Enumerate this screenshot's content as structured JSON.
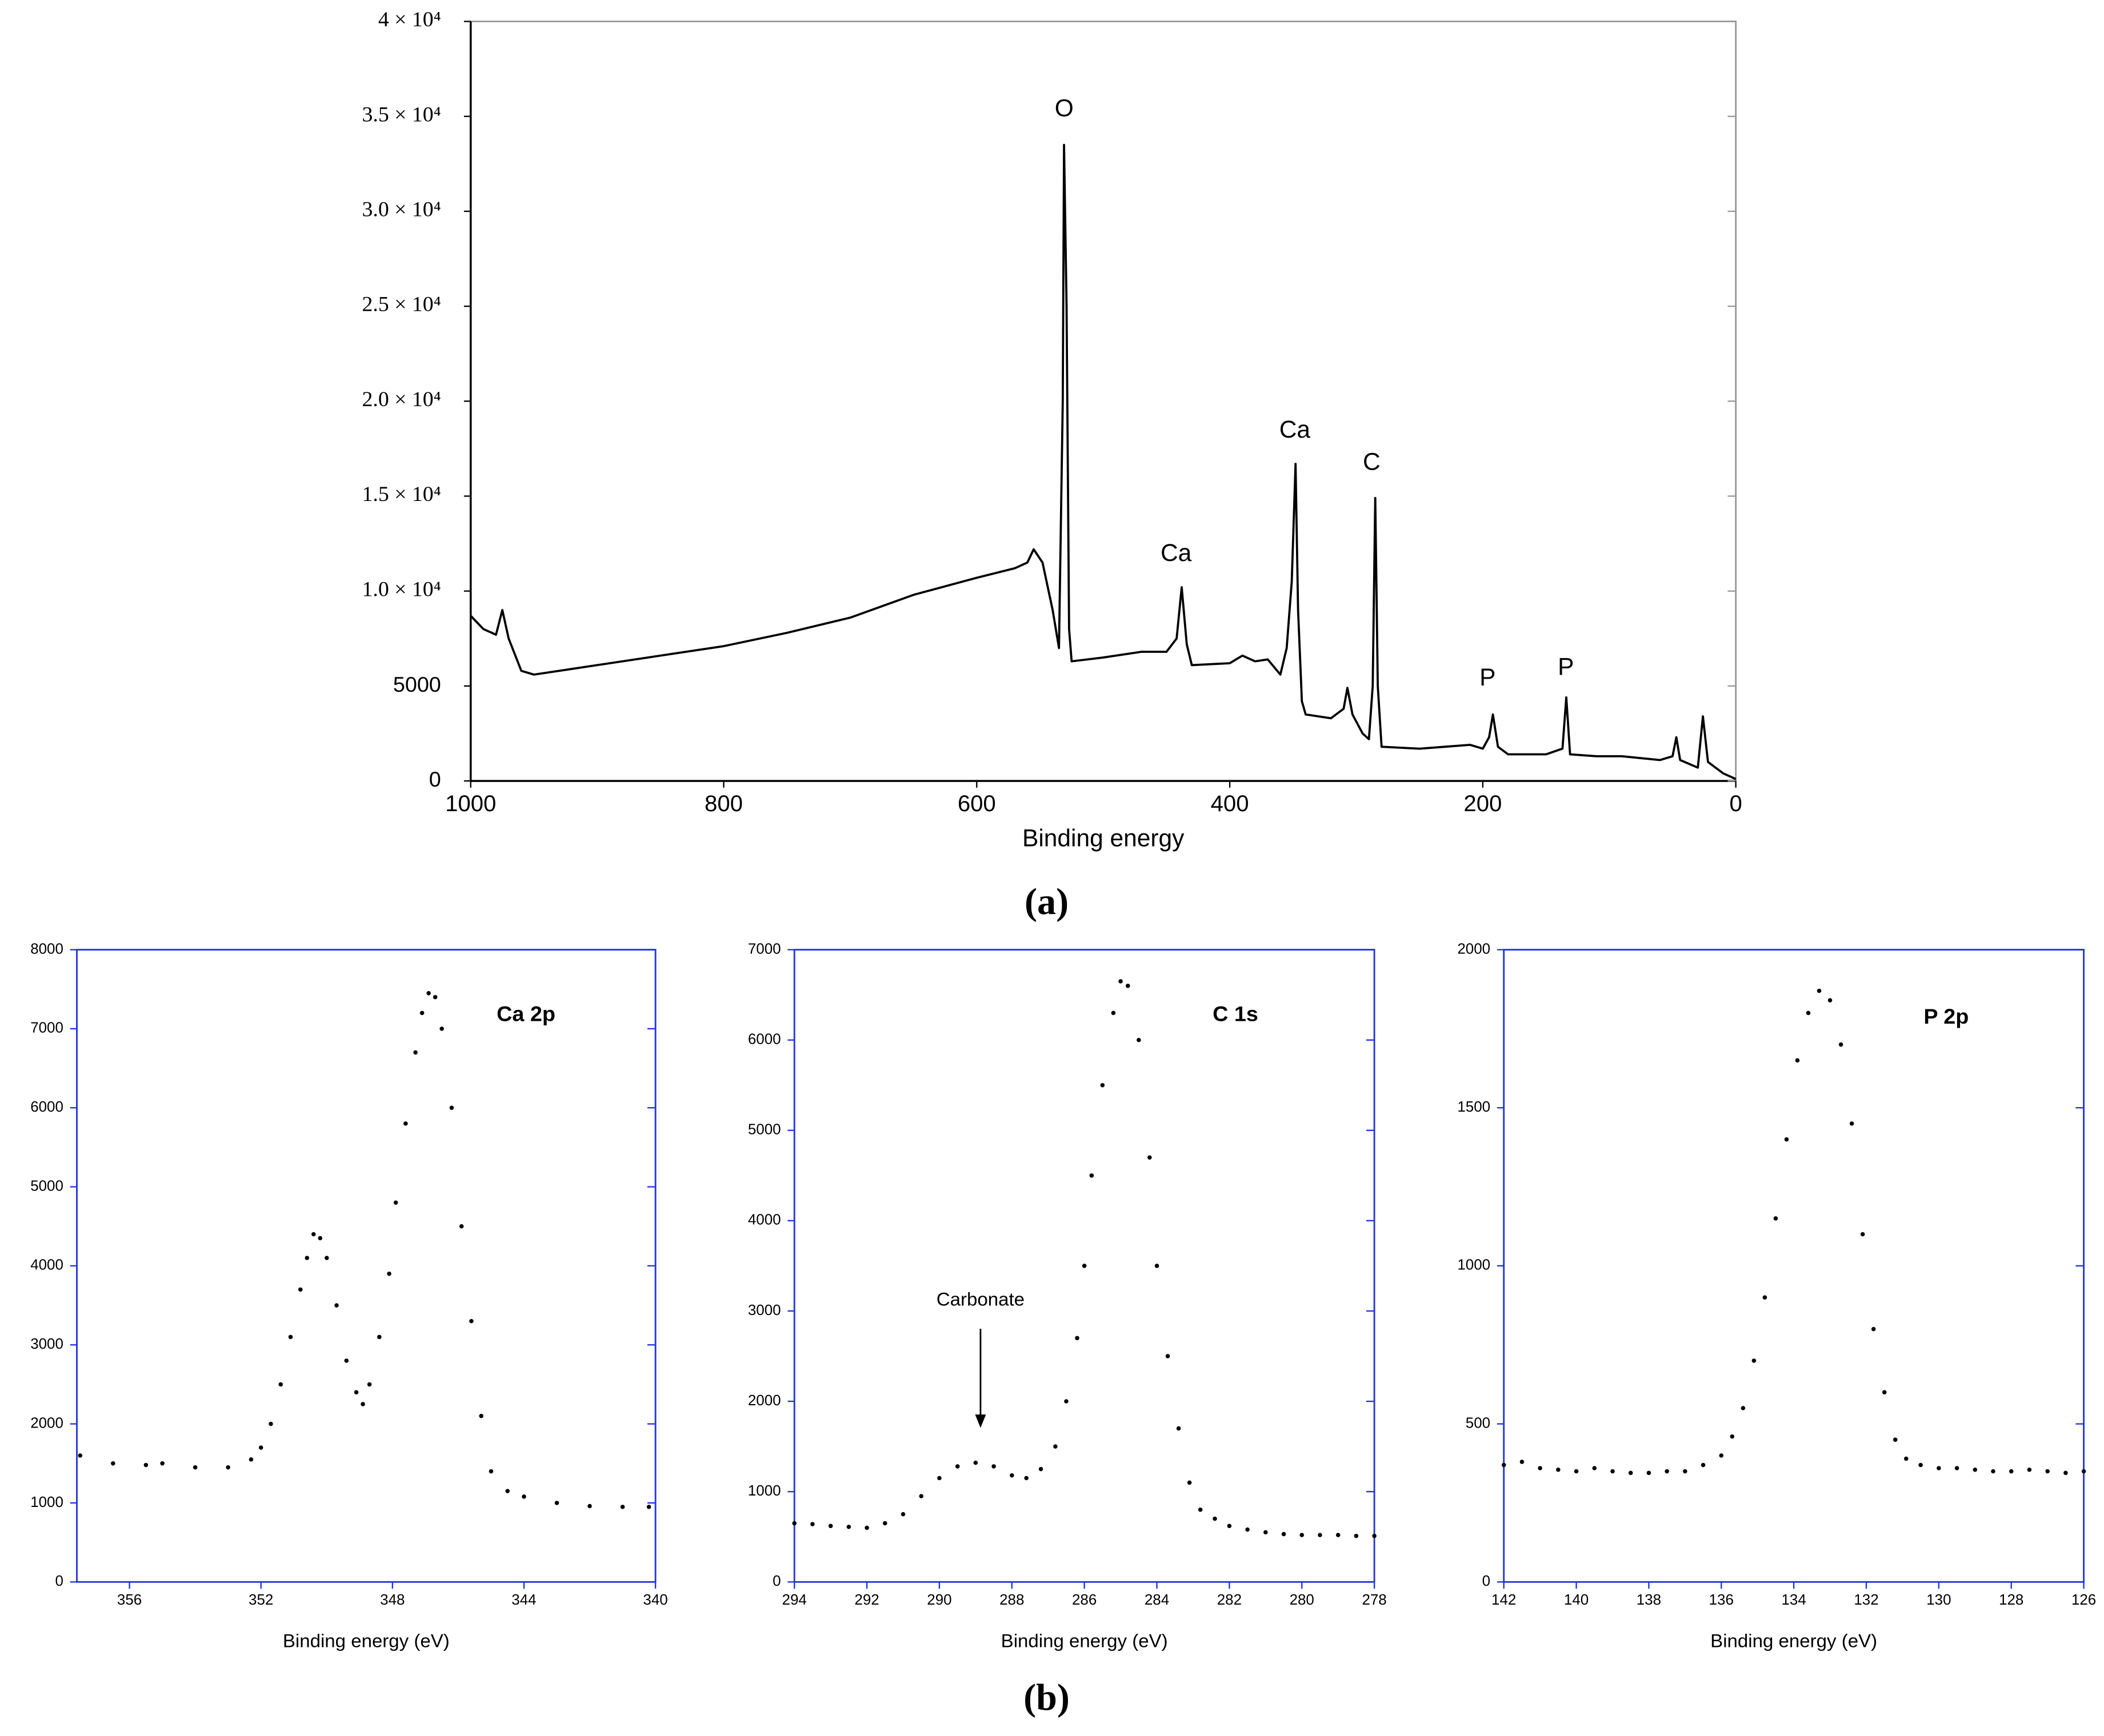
{
  "chart_data": [
    {
      "type": "line",
      "color": "#000000",
      "x": [
        1000,
        990,
        980,
        975,
        970,
        960,
        950,
        900,
        850,
        800,
        750,
        700,
        650,
        600,
        570,
        560,
        555,
        548,
        540,
        535,
        532,
        531,
        529,
        527,
        525,
        500,
        470,
        450,
        442,
        438,
        434,
        430,
        400,
        390,
        380,
        370,
        360,
        355,
        351,
        348,
        346,
        343,
        340,
        320,
        310,
        307,
        303,
        295,
        290,
        287,
        285,
        283,
        280,
        250,
        210,
        200,
        195,
        192,
        188,
        180,
        150,
        137,
        134,
        131,
        110,
        90,
        60,
        50,
        47,
        44,
        30,
        26,
        22,
        10,
        0
      ],
      "values": [
        8700,
        8000,
        7700,
        9000,
        7500,
        5800,
        5600,
        6100,
        6600,
        7100,
        7800,
        8600,
        9800,
        10700,
        11200,
        11500,
        12200,
        11500,
        9000,
        7000,
        20000,
        33500,
        25000,
        8000,
        6300,
        6500,
        6800,
        6800,
        7500,
        10200,
        7200,
        6100,
        6200,
        6600,
        6300,
        6400,
        5600,
        7000,
        10500,
        16700,
        9000,
        4200,
        3500,
        3300,
        3800,
        4900,
        3500,
        2500,
        2200,
        5000,
        14900,
        5000,
        1800,
        1700,
        1900,
        1700,
        2300,
        3500,
        1800,
        1400,
        1400,
        1700,
        4400,
        1400,
        1300,
        1300,
        1100,
        1300,
        2300,
        1100,
        700,
        3400,
        1000,
        400,
        100
      ],
      "xlim": [
        1000,
        0
      ],
      "ylim": [
        0,
        40000
      ],
      "xticks": [
        1000,
        800,
        600,
        400,
        200,
        0
      ],
      "yticks": [
        0,
        5000,
        {
          "value": 10000,
          "label": "1.0 × 10⁴"
        },
        {
          "value": 15000,
          "label": "1.5 × 10⁴"
        },
        {
          "value": 20000,
          "label": "2.0 × 10⁴"
        },
        {
          "value": 25000,
          "label": "2.5 × 10⁴"
        },
        {
          "value": 30000,
          "label": "3.0 × 10⁴"
        },
        {
          "value": 35000,
          "label": "3.5 × 10⁴"
        },
        {
          "value": 40000,
          "label": "4 × 10⁴"
        }
      ],
      "xlabel": "Binding energy",
      "annotations": [
        "O",
        "Ca",
        "Ca",
        "C",
        "P",
        "P"
      ]
    },
    {
      "type": "scatter",
      "title": "Ca 2p",
      "color": "#000000",
      "x": [
        357.5,
        356.5,
        355.5,
        355,
        354,
        353,
        352.3,
        352,
        351.7,
        351.4,
        351.1,
        350.8,
        350.6,
        350.4,
        350.2,
        350,
        349.7,
        349.4,
        349.1,
        348.9,
        348.7,
        348.4,
        348.1,
        347.9,
        347.6,
        347.3,
        347.1,
        346.9,
        346.7,
        346.5,
        346.2,
        345.9,
        345.6,
        345.3,
        345,
        344.5,
        344,
        343,
        342,
        341,
        340.2
      ],
      "values": [
        1600,
        1500,
        1480,
        1500,
        1450,
        1450,
        1550,
        1700,
        2000,
        2500,
        3100,
        3700,
        4100,
        4400,
        4350,
        4100,
        3500,
        2800,
        2400,
        2250,
        2500,
        3100,
        3900,
        4800,
        5800,
        6700,
        7200,
        7450,
        7400,
        7000,
        6000,
        4500,
        3300,
        2100,
        1400,
        1150,
        1080,
        1000,
        960,
        950,
        950
      ],
      "xlim": [
        357.6,
        340
      ],
      "ylim": [
        0,
        8000
      ],
      "xticks": [
        356,
        352,
        348,
        344,
        340
      ],
      "yticks": [
        0,
        1000,
        2000,
        3000,
        4000,
        5000,
        6000,
        7000,
        8000
      ],
      "xlabel": "Binding energy (eV)"
    },
    {
      "type": "scatter",
      "title": "C 1s",
      "color": "#000000",
      "x": [
        294,
        293.5,
        293,
        292.5,
        292,
        291.5,
        291,
        290.5,
        290,
        289.5,
        289,
        288.5,
        288,
        287.6,
        287.2,
        286.8,
        286.5,
        286.2,
        286,
        285.8,
        285.5,
        285.2,
        285,
        284.8,
        284.5,
        284.2,
        284,
        283.7,
        283.4,
        283.1,
        282.8,
        282.4,
        282,
        281.5,
        281,
        280.5,
        280,
        279.5,
        279,
        278.5,
        278
      ],
      "values": [
        650,
        640,
        620,
        610,
        600,
        650,
        750,
        950,
        1150,
        1280,
        1320,
        1280,
        1180,
        1150,
        1250,
        1500,
        2000,
        2700,
        3500,
        4500,
        5500,
        6300,
        6650,
        6600,
        6000,
        4700,
        3500,
        2500,
        1700,
        1100,
        800,
        700,
        620,
        580,
        550,
        530,
        520,
        520,
        520,
        510,
        510
      ],
      "xlim": [
        294,
        278
      ],
      "ylim": [
        0,
        7000
      ],
      "xticks": [
        294,
        292,
        290,
        288,
        286,
        284,
        282,
        280,
        278
      ],
      "yticks": [
        0,
        1000,
        2000,
        3000,
        4000,
        5000,
        6000,
        7000
      ],
      "xlabel": "Binding energy (eV)",
      "annotations": [
        "Carbonate"
      ]
    },
    {
      "type": "scatter",
      "title": "P 2p",
      "color": "#000000",
      "x": [
        142,
        141.5,
        141,
        140.5,
        140,
        139.5,
        139,
        138.5,
        138,
        137.5,
        137,
        136.5,
        136,
        135.7,
        135.4,
        135.1,
        134.8,
        134.5,
        134.2,
        133.9,
        133.6,
        133.3,
        133,
        132.7,
        132.4,
        132.1,
        131.8,
        131.5,
        131.2,
        130.9,
        130.5,
        130,
        129.5,
        129,
        128.5,
        128,
        127.5,
        127,
        126.5,
        126
      ],
      "values": [
        370,
        380,
        360,
        355,
        350,
        360,
        350,
        345,
        345,
        350,
        350,
        370,
        400,
        460,
        550,
        700,
        900,
        1150,
        1400,
        1650,
        1800,
        1870,
        1840,
        1700,
        1450,
        1100,
        800,
        600,
        450,
        390,
        370,
        360,
        360,
        355,
        350,
        350,
        355,
        350,
        345,
        350
      ],
      "xlim": [
        142,
        126
      ],
      "ylim": [
        0,
        2000
      ],
      "xticks": [
        142,
        140,
        138,
        136,
        134,
        132,
        130,
        128,
        126
      ],
      "yticks": [
        0,
        500,
        1000,
        1500,
        2000
      ],
      "xlabel": "Binding energy (eV)"
    }
  ],
  "captions": [
    "(a)",
    "(b)"
  ]
}
